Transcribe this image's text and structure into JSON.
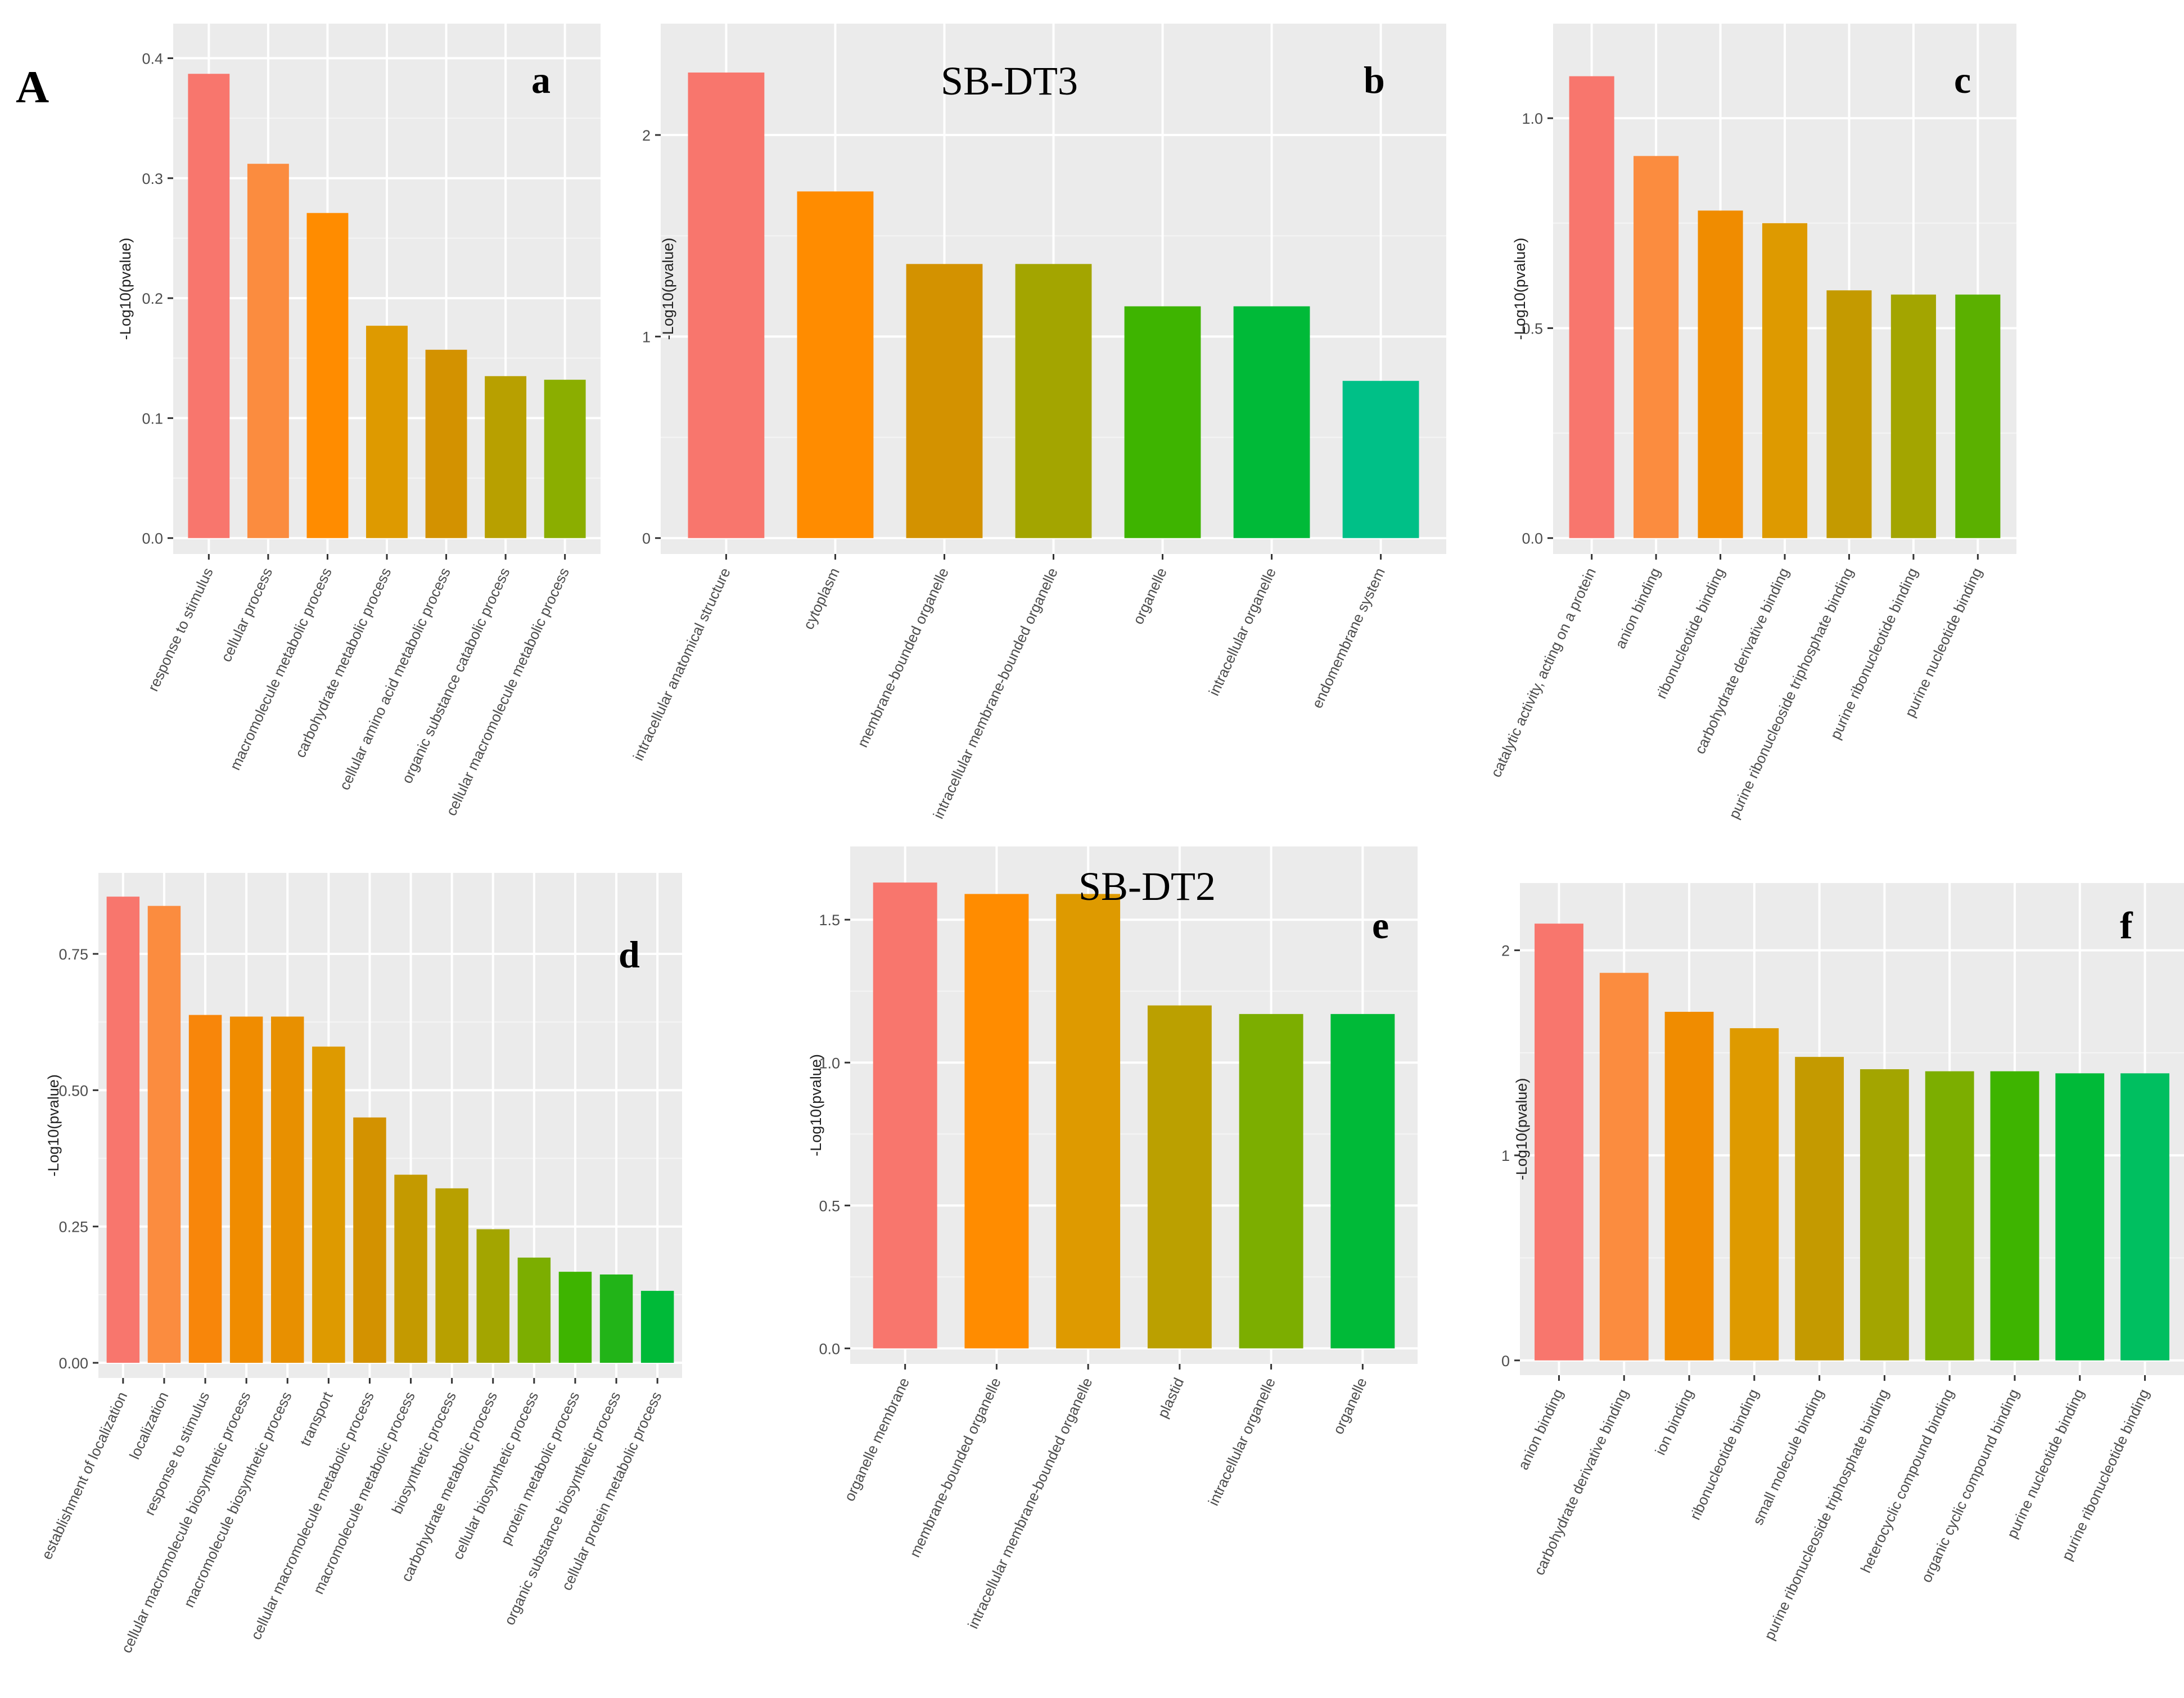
{
  "figure_label": "A",
  "colors": {
    "panel_bg": "#ebebeb",
    "grid_major": "#ffffff",
    "grid_minor": "#f5f5f5",
    "bar_palette": [
      "#F8766D",
      "#FB8C3F",
      "#FF8C00",
      "#DE9A00",
      "#C49A00",
      "#A3A500",
      "#7CAE00",
      "#3EB400",
      "#00BA38",
      "#00BF7D"
    ]
  },
  "chart_data": [
    {
      "type": "bar",
      "panel": "a",
      "title": "",
      "xlabel": "",
      "ylabel": "-Log10(pvalue)",
      "ylim": [
        0,
        0.42
      ],
      "yticks": [
        0,
        0.1,
        0.2,
        0.3,
        0.4
      ],
      "yticklabels": [
        "0.0",
        "0.1",
        "0.2",
        "0.3",
        "0.4"
      ],
      "categories": [
        "response to stimulus",
        "cellular process",
        "macromolecule metabolic process",
        "carbohydrate metabolic process",
        "cellular amino acid metabolic process",
        "organic substance catabolic process",
        "cellular macromolecule metabolic process"
      ],
      "values": [
        0.387,
        0.312,
        0.271,
        0.177,
        0.157,
        0.135,
        0.132
      ],
      "colors": [
        "#F8766D",
        "#FB8C3F",
        "#FF8C00",
        "#DE9A00",
        "#D39200",
        "#B8A000",
        "#8BAE00"
      ],
      "grid": true,
      "legend": "none"
    },
    {
      "type": "bar",
      "panel": "b",
      "title": "SB-DT3",
      "xlabel": "",
      "ylabel": "-Log10(pvalue)",
      "ylim": [
        0,
        2.5
      ],
      "yticks": [
        0,
        1,
        2
      ],
      "yticklabels": [
        "0",
        "1",
        "2"
      ],
      "categories": [
        "intracellular anatomical structure",
        "cytoplasm",
        "membrane-bounded organelle",
        "intracellular membrane-bounded organelle",
        "organelle",
        "intracellular organelle",
        "endomembrane system"
      ],
      "values": [
        2.31,
        1.72,
        1.36,
        1.36,
        1.15,
        1.15,
        0.78
      ],
      "colors": [
        "#F8766D",
        "#FF8C00",
        "#D39200",
        "#A3A500",
        "#3EB400",
        "#00BA38",
        "#00C087"
      ],
      "grid": true,
      "legend": "none"
    },
    {
      "type": "bar",
      "panel": "c",
      "title": "",
      "xlabel": "",
      "ylabel": "-Log10(pvalue)",
      "ylim": [
        0,
        1.2
      ],
      "yticks": [
        0,
        0.5,
        1.0
      ],
      "yticklabels": [
        "0.0",
        "0.5",
        "1.0"
      ],
      "categories": [
        "catalytic activity, acting on a protein",
        "anion binding",
        "ribonucleotide binding",
        "carbohydrate derivative binding",
        "purine ribonucleoside triphosphate binding",
        "purine ribonucleotide binding",
        "purine nucleotide binding"
      ],
      "values": [
        1.1,
        0.91,
        0.78,
        0.75,
        0.59,
        0.58,
        0.58
      ],
      "colors": [
        "#F8766D",
        "#FB8C3F",
        "#F08C00",
        "#DE9A00",
        "#C49A00",
        "#A3A500",
        "#5BB000"
      ],
      "grid": true,
      "legend": "none"
    },
    {
      "type": "bar",
      "panel": "d",
      "title": "",
      "xlabel": "",
      "ylabel": "-Log10(pvalue)",
      "ylim": [
        0,
        0.88
      ],
      "yticks": [
        0,
        0.25,
        0.5,
        0.75
      ],
      "yticklabels": [
        "0.00",
        "0.25",
        "0.50",
        "0.75"
      ],
      "categories": [
        "establishment of localization",
        "localization",
        "response to stimulus",
        "cellular macromolecule biosynthetic process",
        "macromolecule biosynthetic process",
        "transport",
        "cellular macromolecule metabolic process",
        "macromolecule metabolic process",
        "biosynthetic process",
        "carbohydrate metabolic process",
        "cellular biosynthetic process",
        "protein metabolic process",
        "organic substance biosynthetic process",
        "cellular protein metabolic process"
      ],
      "values": [
        0.855,
        0.838,
        0.638,
        0.635,
        0.635,
        0.58,
        0.45,
        0.345,
        0.32,
        0.245,
        0.193,
        0.167,
        0.162,
        0.132
      ],
      "colors": [
        "#F8766D",
        "#FB8C3F",
        "#F8860A",
        "#F08C00",
        "#E89000",
        "#DE9A00",
        "#D39200",
        "#C49A00",
        "#B8A000",
        "#A3A500",
        "#7CAE00",
        "#3EB400",
        "#22B418",
        "#00BA38"
      ],
      "grid": true,
      "legend": "none"
    },
    {
      "type": "bar",
      "panel": "e",
      "title": "SB-DT2",
      "xlabel": "",
      "ylabel": "-Log10(pvalue)",
      "ylim": [
        0,
        1.72
      ],
      "yticks": [
        0,
        0.5,
        1.0,
        1.5
      ],
      "yticklabels": [
        "0.0",
        "0.5",
        "1.0",
        "1.5"
      ],
      "categories": [
        "organelle membrane",
        "membrane-bounded organelle",
        "intracellular membrane-bounded organelle",
        "plastid",
        "intracellular organelle",
        "organelle"
      ],
      "values": [
        1.63,
        1.59,
        1.59,
        1.2,
        1.17,
        1.17
      ],
      "colors": [
        "#F8766D",
        "#FF8C00",
        "#DE9A00",
        "#BBA000",
        "#7CAE00",
        "#00BA38"
      ],
      "grid": true,
      "legend": "none"
    },
    {
      "type": "bar",
      "panel": "f",
      "title": "",
      "xlabel": "",
      "ylabel": "-Log10(pvalue)",
      "ylim": [
        0,
        2.28
      ],
      "yticks": [
        0,
        1,
        2
      ],
      "yticklabels": [
        "0",
        "1",
        "2"
      ],
      "categories": [
        "anion binding",
        "carbohydrate derivative binding",
        "ion binding",
        "ribonucleotide binding",
        "small molecule binding",
        "purine ribonucleoside triphosphate binding",
        "heterocyclic compound binding",
        "organic cyclic compound binding",
        "purine nucleotide binding",
        "purine ribonucleotide binding"
      ],
      "values": [
        2.13,
        1.89,
        1.7,
        1.62,
        1.48,
        1.42,
        1.41,
        1.41,
        1.4,
        1.4
      ],
      "colors": [
        "#F8766D",
        "#FB8C3F",
        "#F08C00",
        "#DE9A00",
        "#C49A00",
        "#A3A500",
        "#7CAE00",
        "#3EB400",
        "#00BA38",
        "#00BF60"
      ],
      "grid": true,
      "legend": "none"
    }
  ]
}
